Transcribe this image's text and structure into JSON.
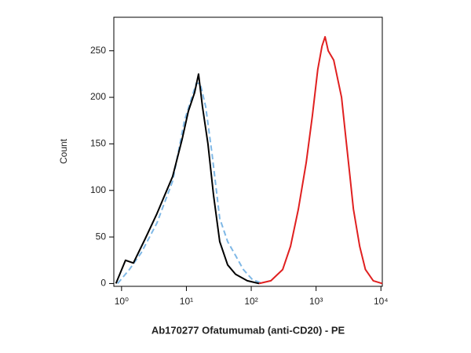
{
  "chart_data": {
    "type": "line",
    "xlabel": "Ab170277 Ofatumumab (anti-CD20) - PE",
    "ylabel": "Count",
    "xscale": "log",
    "xlim": [
      0.76,
      10500
    ],
    "ylim": [
      -3,
      286
    ],
    "xticks": [
      {
        "value": 1,
        "label": "10⁰"
      },
      {
        "value": 10,
        "label": "10¹"
      },
      {
        "value": 100,
        "label": "10²"
      },
      {
        "value": 1000,
        "label": "10³"
      },
      {
        "value": 10000,
        "label": "10⁴"
      }
    ],
    "yticks": [
      0,
      50,
      100,
      150,
      200,
      250
    ],
    "series": [
      {
        "color": "#7fb8e6",
        "dash": true,
        "x": [
          0.87,
          1.32,
          2.01,
          3.51,
          6.14,
          9.33,
          14.2,
          16.3,
          19.8,
          24.8,
          32.7,
          43.3,
          57.3,
          75.6,
          105,
          152
        ],
        "values": [
          0,
          15,
          33,
          65,
          110,
          175,
          215,
          215,
          190,
          140,
          70,
          45,
          30,
          15,
          4,
          0
        ]
      },
      {
        "color": "#000000",
        "dash": false,
        "x": [
          0.82,
          1.15,
          1.52,
          2.31,
          3.51,
          4.64,
          6.14,
          8.58,
          10.7,
          13.4,
          15.4,
          17.7,
          21.5,
          26.2,
          32.7,
          43.3,
          57.3,
          86.9,
          132
        ],
        "values": [
          0,
          25,
          22,
          48,
          75,
          95,
          115,
          155,
          185,
          205,
          225,
          190,
          150,
          95,
          45,
          20,
          10,
          3,
          0
        ]
      },
      {
        "color": "#e02020",
        "dash": false,
        "x": [
          132,
          201,
          305,
          404,
          533,
          705,
          877,
          1062,
          1234,
          1377,
          1538,
          1870,
          2150,
          2470,
          2840,
          3270,
          3760,
          4700,
          5770,
          7630,
          10500
        ],
        "values": [
          0,
          3,
          15,
          40,
          80,
          130,
          180,
          230,
          255,
          265,
          250,
          240,
          220,
          200,
          160,
          120,
          80,
          40,
          15,
          3,
          0
        ]
      }
    ]
  }
}
